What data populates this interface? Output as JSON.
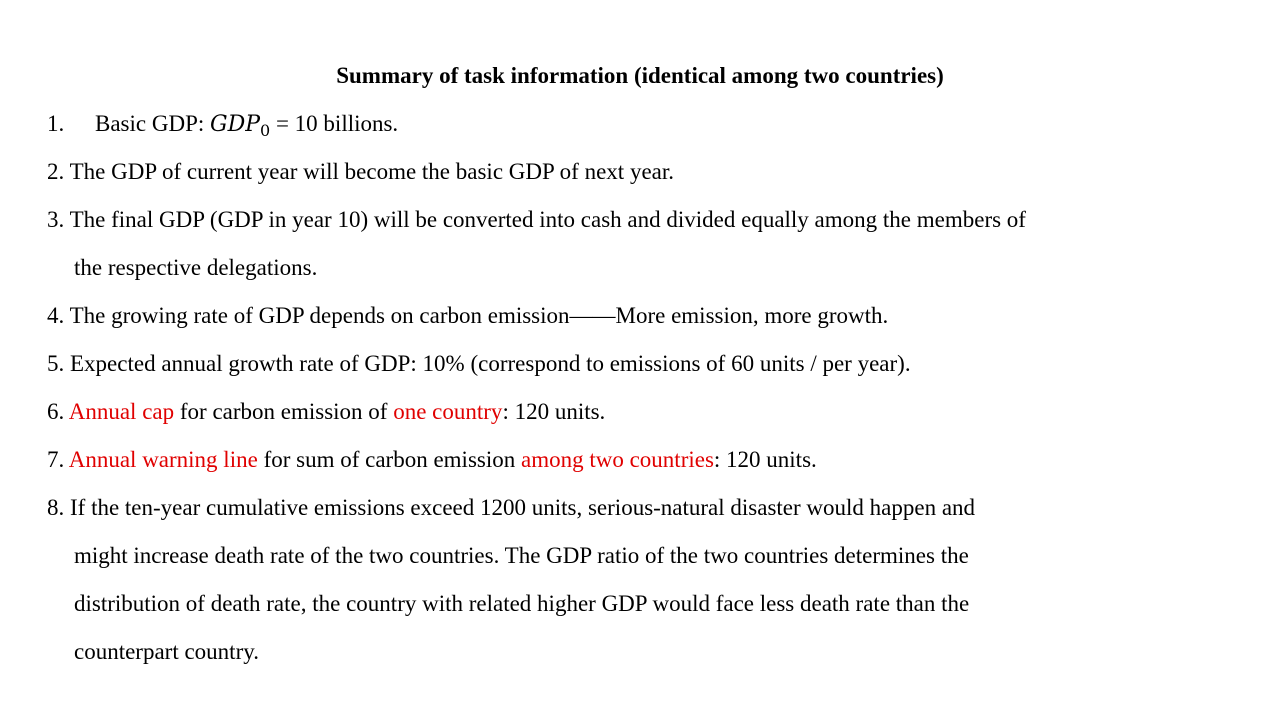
{
  "title": "Summary of task information (identical among two countries)",
  "items": [
    {
      "number": "1.",
      "text_before": "Basic GDP: ",
      "math_main": "GDP",
      "math_sub": "0",
      "text_after": " = 10 billions."
    },
    {
      "number": "2.",
      "text": "The GDP of current year will become the basic GDP of next year."
    },
    {
      "number": "3.",
      "text": "The final GDP (GDP in year 10) will be converted into cash and divided equally among the members of",
      "continuation": "the  respective delegations."
    },
    {
      "number": "4.",
      "text": "The growing rate of GDP depends on carbon emission——More emission, more growth."
    },
    {
      "number": "5.",
      "text": "Expected annual growth rate of GDP: 10% (correspond to emissions of 60 units / per year)."
    },
    {
      "number": "6.",
      "highlight_1": "Annual cap",
      "text_mid": " for carbon emission of ",
      "highlight_2": "one country",
      "text_end": ": 120 units."
    },
    {
      "number": "7.",
      "highlight_1": "Annual warning line",
      "text_mid": " for sum of carbon emission ",
      "highlight_2": "among two countries",
      "text_end": ": 120 units."
    },
    {
      "number": "8.",
      "text": "If the ten-year cumulative emissions exceed 1200 units, serious-natural disaster would happen and",
      "continuation_1": "might increase death rate of the two countries. The GDP ratio of the two countries determines the",
      "continuation_2": "distribution of death rate, the country with related higher GDP would face less death rate than the",
      "continuation_3": "counterpart country."
    }
  ],
  "colors": {
    "text": "#000000",
    "highlight": "#e00000",
    "background": "#ffffff"
  }
}
